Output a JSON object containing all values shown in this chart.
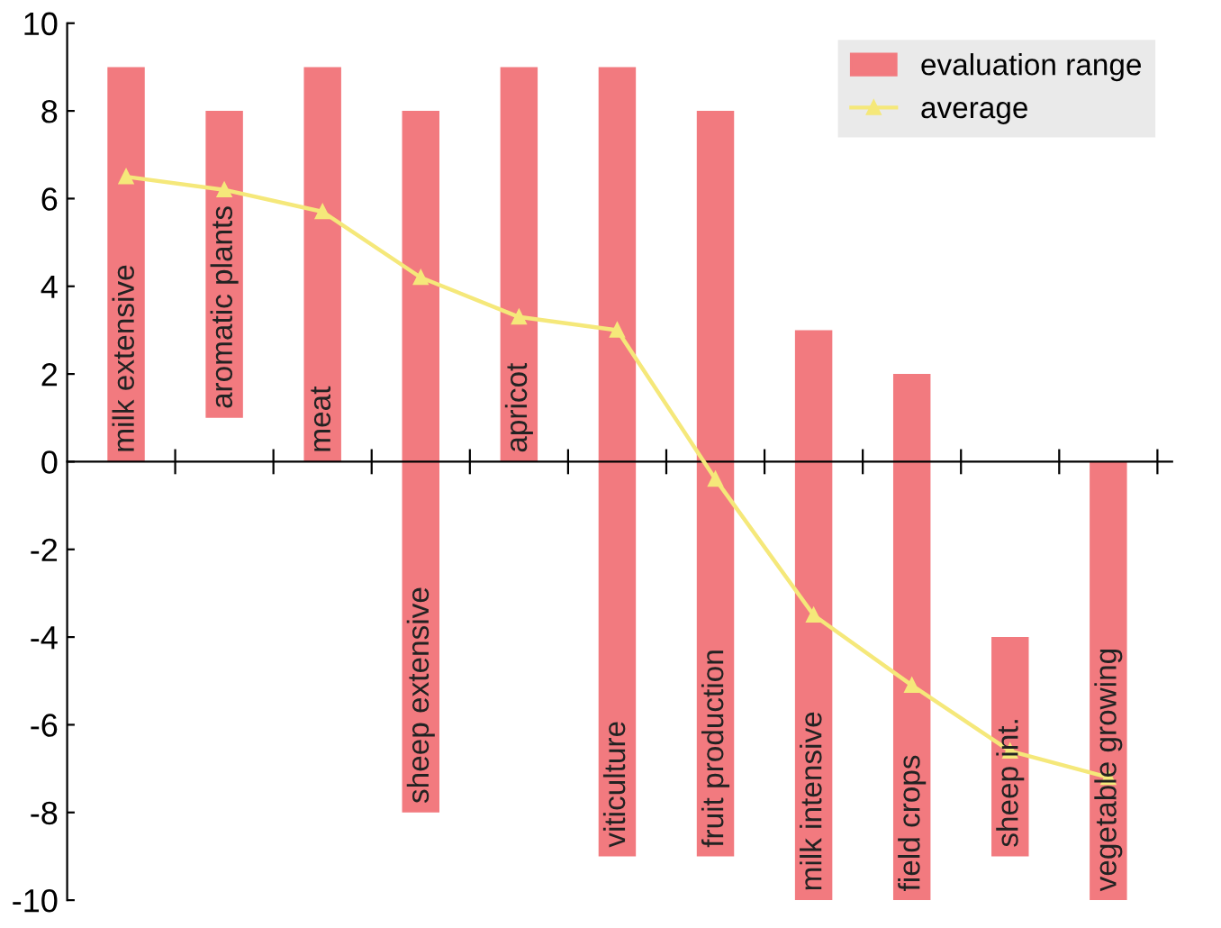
{
  "chart_data": {
    "type": "bar",
    "categories": [
      "milk extensive",
      "aromatic plants",
      "meat",
      "sheep extensive",
      "apricot",
      "viticulture",
      "fruit production",
      "milk intensive",
      "field crops",
      "sheep int.",
      "vegetable growing"
    ],
    "series": [
      {
        "name": "evaluation range",
        "color": "#f27a7f",
        "base": [
          0,
          1,
          0,
          -8,
          0,
          -9,
          -9,
          -10,
          -10,
          -9,
          -10
        ],
        "values": [
          9,
          7,
          9,
          16,
          9,
          18,
          17,
          13,
          12,
          5,
          10
        ]
      },
      {
        "name": "average",
        "type": "line",
        "color": "#f5e87a",
        "marker": "triangle",
        "values": [
          6.5,
          6.2,
          5.7,
          4.2,
          3.3,
          3.0,
          -0.4,
          -3.5,
          -5.1,
          -6.6,
          -7.2
        ]
      }
    ],
    "ylim": [
      -10,
      10
    ],
    "yticks": [
      -10,
      -8,
      -6,
      -4,
      -2,
      0,
      2,
      4,
      6,
      8,
      10
    ],
    "grid": false,
    "legend": "top right"
  }
}
